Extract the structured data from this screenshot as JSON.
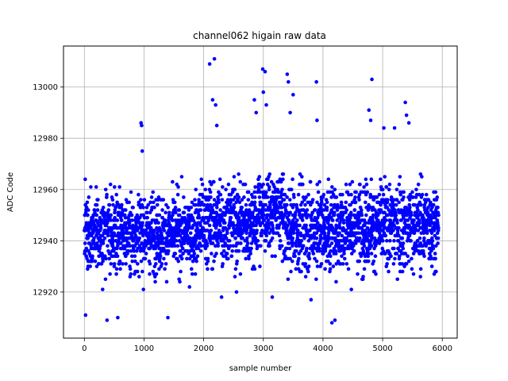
{
  "chart_data": {
    "type": "scatter",
    "title": "channel062 higain raw data",
    "xlabel": "sample number",
    "ylabel": "ADC Code",
    "xlim": [
      -350,
      6250
    ],
    "ylim": [
      12902,
      13016
    ],
    "xticks": [
      0,
      1000,
      2000,
      3000,
      4000,
      5000,
      6000
    ],
    "yticks": [
      12920,
      12940,
      12960,
      12980,
      13000
    ],
    "grid": true,
    "marker_color": "#0000ff",
    "n_samples": 5940,
    "regions": [
      {
        "x_start": 0,
        "x_end": 1900,
        "center": 12943,
        "spread": 7
      },
      {
        "x_start": 1900,
        "x_end": 2900,
        "center": 12947,
        "spread": 8
      },
      {
        "x_start": 2900,
        "x_end": 3350,
        "center": 12951,
        "spread": 7
      },
      {
        "x_start": 3350,
        "x_end": 4300,
        "center": 12945,
        "spread": 8
      },
      {
        "x_start": 4300,
        "x_end": 5940,
        "center": 12946,
        "spread": 8
      }
    ],
    "outliers": [
      {
        "x": 20,
        "y": 12911
      },
      {
        "x": 380,
        "y": 12909
      },
      {
        "x": 560,
        "y": 12910
      },
      {
        "x": 950,
        "y": 12986
      },
      {
        "x": 960,
        "y": 12985
      },
      {
        "x": 970,
        "y": 12975
      },
      {
        "x": 1400,
        "y": 12910
      },
      {
        "x": 2100,
        "y": 13009
      },
      {
        "x": 2180,
        "y": 13011
      },
      {
        "x": 2150,
        "y": 12995
      },
      {
        "x": 2200,
        "y": 12993
      },
      {
        "x": 2220,
        "y": 12985
      },
      {
        "x": 2990,
        "y": 13007
      },
      {
        "x": 3030,
        "y": 13006
      },
      {
        "x": 3000,
        "y": 12998
      },
      {
        "x": 3050,
        "y": 12993
      },
      {
        "x": 2850,
        "y": 12995
      },
      {
        "x": 2880,
        "y": 12990
      },
      {
        "x": 3400,
        "y": 13005
      },
      {
        "x": 3420,
        "y": 13002
      },
      {
        "x": 3500,
        "y": 12997
      },
      {
        "x": 3450,
        "y": 12990
      },
      {
        "x": 3890,
        "y": 13002
      },
      {
        "x": 3900,
        "y": 12987
      },
      {
        "x": 4150,
        "y": 12908
      },
      {
        "x": 4200,
        "y": 12909
      },
      {
        "x": 4820,
        "y": 13003
      },
      {
        "x": 4770,
        "y": 12991
      },
      {
        "x": 4800,
        "y": 12987
      },
      {
        "x": 5020,
        "y": 12984
      },
      {
        "x": 5200,
        "y": 12984
      },
      {
        "x": 5380,
        "y": 12994
      },
      {
        "x": 5400,
        "y": 12989
      },
      {
        "x": 5440,
        "y": 12986
      },
      {
        "x": 2300,
        "y": 12918
      },
      {
        "x": 2550,
        "y": 12920
      },
      {
        "x": 3150,
        "y": 12918
      },
      {
        "x": 3800,
        "y": 12917
      }
    ]
  }
}
